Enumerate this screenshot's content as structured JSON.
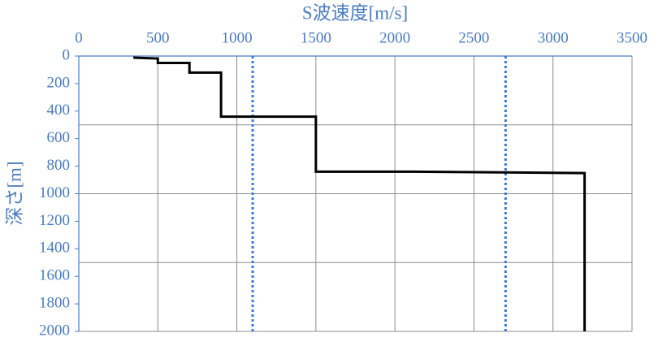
{
  "chart_data": {
    "type": "line",
    "title": "S波速度[m/s]",
    "y_label": "深さ[m]",
    "series": [
      {
        "color": "#000000",
        "x": [
          345,
          500,
          500,
          700,
          700,
          900,
          900,
          1500,
          1500,
          2100,
          3200,
          3200
        ],
        "y": [
          12,
          18,
          50,
          50,
          120,
          120,
          440,
          440,
          840,
          840,
          850,
          2000
        ]
      }
    ],
    "xlim": [
      0,
      3500
    ],
    "xticks": [
      0,
      500,
      1000,
      1500,
      2000,
      2500,
      3000,
      3500
    ],
    "ylim": [
      0,
      2000
    ],
    "yticks": [
      0,
      200,
      400,
      600,
      800,
      1000,
      1200,
      1400,
      1600,
      1800,
      2000
    ],
    "y_inverted": true,
    "x_axis_position": "top",
    "grid": true,
    "ygrid": [
      500,
      1000,
      1500,
      2000
    ],
    "vlines": [
      1100,
      2700
    ],
    "vline_color": "#3b78d8"
  }
}
